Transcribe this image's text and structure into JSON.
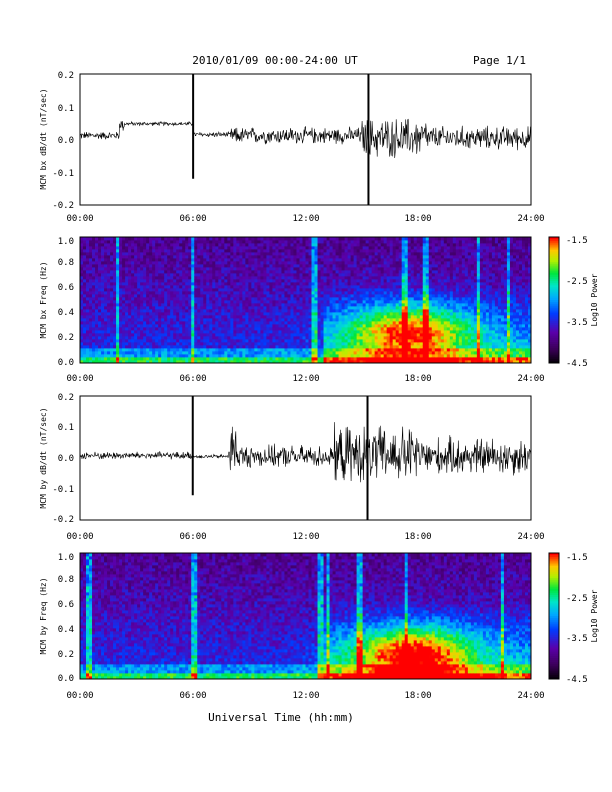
{
  "header": {
    "date_range": "2010/01/09  00:00-24:00 UT",
    "page": "Page 1/1"
  },
  "x_axis": {
    "label": "Universal Time (hh:mm)",
    "ticks": [
      "00:00",
      "06:00",
      "12:00",
      "18:00",
      "24:00"
    ]
  },
  "panels": {
    "bx_dbdt": {
      "ylabel": "MCM bx dB/dt (nT/sec)",
      "yticks": [
        "0.2",
        "0.1",
        "0.0",
        "-0.1",
        "-0.2"
      ]
    },
    "bx_freq": {
      "ylabel": "MCM bx Freq (Hz)",
      "yticks": [
        "1.0",
        "0.8",
        "0.6",
        "0.4",
        "0.2",
        "0.0"
      ]
    },
    "by_dbdt": {
      "ylabel": "MCM by dB/dt (nT/sec)",
      "yticks": [
        "0.2",
        "0.1",
        "0.0",
        "-0.1",
        "-0.2"
      ]
    },
    "by_freq": {
      "ylabel": "MCM by Freq (Hz)",
      "yticks": [
        "1.0",
        "0.8",
        "0.6",
        "0.4",
        "0.2",
        "0.0"
      ]
    }
  },
  "colorbar": {
    "label": "Log10 Power",
    "ticks": [
      "-1.5",
      "-2.5",
      "-3.5",
      "-4.5"
    ]
  },
  "chart_data": [
    {
      "type": "line",
      "x_range_hours": [
        0,
        24
      ],
      "ylim": [
        -0.2,
        0.2
      ],
      "baseline_segments": [
        {
          "from_hour": 0.0,
          "to_hour": 2.1,
          "level": 0.012,
          "amp": 0.012
        },
        {
          "from_hour": 2.1,
          "to_hour": 2.4,
          "level": 0.045,
          "amp": 0.02
        },
        {
          "from_hour": 2.4,
          "to_hour": 6.0,
          "level": 0.048,
          "amp": 0.006
        },
        {
          "from_hour": 6.0,
          "to_hour": 8.0,
          "level": 0.015,
          "amp": 0.008
        },
        {
          "from_hour": 8.0,
          "to_hour": 15.0,
          "level": 0.012,
          "amp": 0.025
        },
        {
          "from_hour": 15.0,
          "to_hour": 18.5,
          "level": 0.005,
          "amp": 0.06
        },
        {
          "from_hour": 18.5,
          "to_hour": 24.0,
          "level": 0.005,
          "amp": 0.035
        }
      ],
      "spikes": [
        {
          "hour": 6.02,
          "min": -0.12,
          "max": 0.2
        },
        {
          "hour": 15.35,
          "min": -0.2,
          "max": 0.2
        }
      ]
    },
    {
      "type": "heatmap",
      "x_range_hours": [
        0,
        24
      ],
      "ylim": [
        0.0,
        1.0
      ],
      "zlim": [
        -4.5,
        -1.5
      ],
      "enhancement": {
        "center_hour": 17.5,
        "center_freq": 0.25,
        "strength": 1.2
      },
      "bright_lines_hours": [
        2.0,
        6.0,
        12.5,
        17.3,
        18.4,
        21.2,
        22.8
      ]
    },
    {
      "type": "line",
      "x_range_hours": [
        0,
        24
      ],
      "ylim": [
        -0.2,
        0.2
      ],
      "baseline_segments": [
        {
          "from_hour": 0.0,
          "to_hour": 6.0,
          "level": 0.008,
          "amp": 0.012
        },
        {
          "from_hour": 6.0,
          "to_hour": 7.9,
          "level": 0.005,
          "amp": 0.006
        },
        {
          "from_hour": 7.9,
          "to_hour": 8.3,
          "level": 0.03,
          "amp": 0.09
        },
        {
          "from_hour": 8.3,
          "to_hour": 13.5,
          "level": 0.005,
          "amp": 0.035
        },
        {
          "from_hour": 13.5,
          "to_hour": 18.0,
          "level": 0.01,
          "amp": 0.09
        },
        {
          "from_hour": 18.0,
          "to_hour": 24.0,
          "level": 0.005,
          "amp": 0.06
        }
      ],
      "spikes": [
        {
          "hour": 6.0,
          "min": -0.12,
          "max": 0.2
        },
        {
          "hour": 15.3,
          "min": -0.2,
          "max": 0.2
        }
      ]
    },
    {
      "type": "heatmap",
      "x_range_hours": [
        0,
        24
      ],
      "ylim": [
        0.0,
        1.0
      ],
      "zlim": [
        -4.5,
        -1.5
      ],
      "enhancement": {
        "center_hour": 17.8,
        "center_freq": 0.2,
        "strength": 1.3
      },
      "bright_lines_hours": [
        0.5,
        6.1,
        12.8,
        13.2,
        14.9,
        17.4,
        22.5
      ]
    }
  ]
}
